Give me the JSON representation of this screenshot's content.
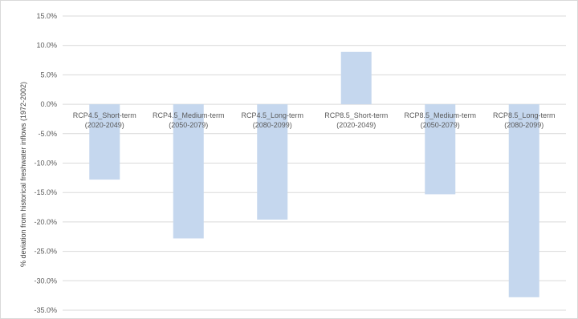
{
  "chart_data": {
    "type": "bar",
    "categories": [
      [
        "RCP4.5_Short-term",
        "(2020-2049)"
      ],
      [
        "RCP4.5_Medium-term",
        "(2050-2079)"
      ],
      [
        "RCP4.5_Long-term",
        "(2080-2099)"
      ],
      [
        "RCP8.5_Short-term",
        "(2020-2049)"
      ],
      [
        "RCP8.5_Medium-term",
        "(2050-2079)"
      ],
      [
        "RCP8.5_Long-term",
        "(2080-2099)"
      ]
    ],
    "values": [
      -12.8,
      -22.8,
      -19.6,
      8.9,
      -15.3,
      -32.8
    ],
    "ylabel": "% deviation from historical freshwater inflows (1972-2002)",
    "ylim": [
      -35,
      15
    ],
    "yticks": [
      15,
      10,
      5,
      0,
      -5,
      -10,
      -15,
      -20,
      -25,
      -30,
      -35
    ],
    "ytick_labels": [
      "15.0%",
      "10.0%",
      "5.0%",
      "0.0%",
      "-5.0%",
      "-10.0%",
      "-15.0%",
      "-20.0%",
      "-25.0%",
      "-30.0%",
      "-35.0%"
    ],
    "grid": true,
    "bar_color": "#c5d7ee",
    "grid_color": "#d9d9d9"
  }
}
